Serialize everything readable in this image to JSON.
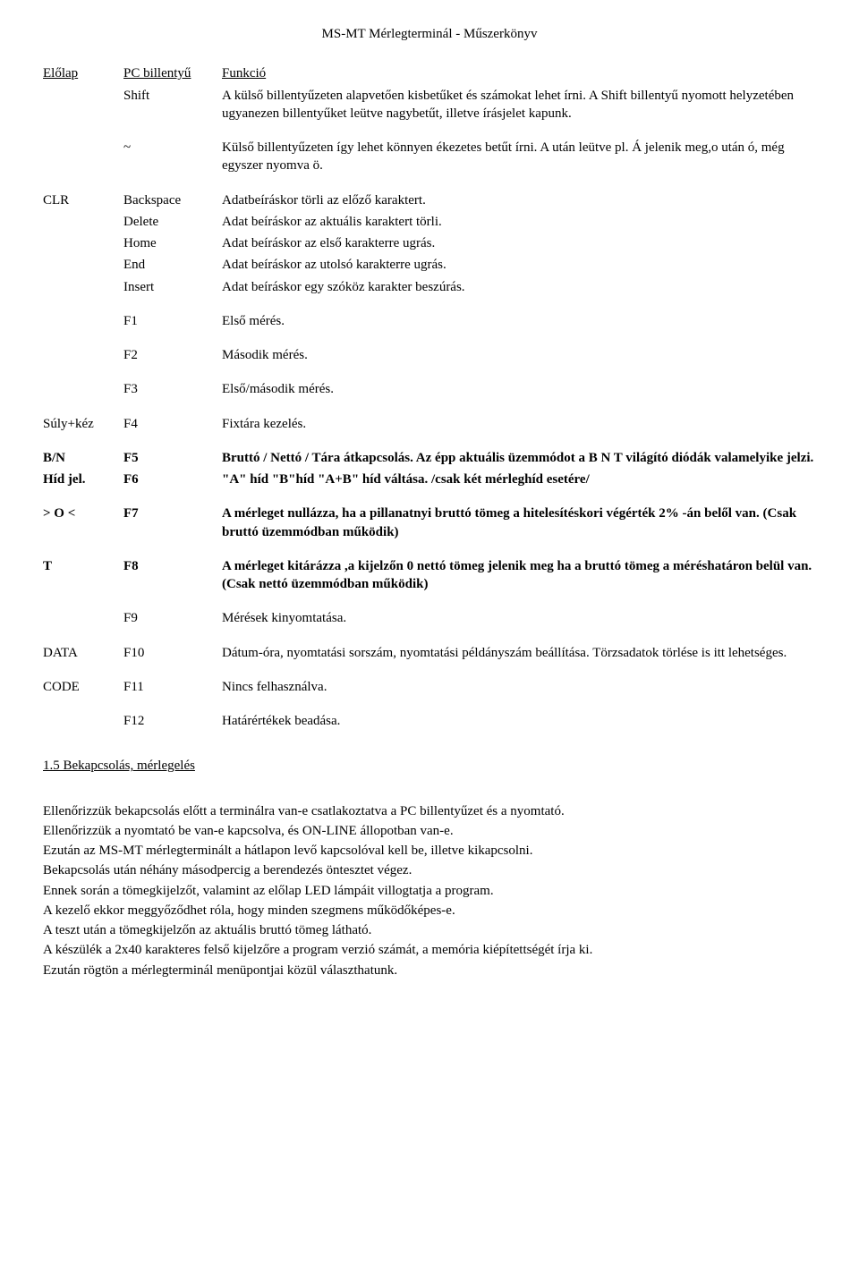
{
  "header": "MS-MT Mérlegterminál - Műszerkönyv",
  "thead": {
    "c1": "Előlap",
    "c2": "PC billentyű",
    "c3": "Funkció"
  },
  "shift": {
    "c2": "Shift",
    "c3": "A külső billentyűzeten alapvetően kisbetűket és számokat lehet írni. A Shift billentyű nyomott helyzetében ugyanezen billentyűket leütve nagybetűt, illetve írásjelet kapunk."
  },
  "tilde": {
    "c2": "~",
    "c3": "Külső billentyűzeten így lehet könnyen ékezetes betűt írni. A után leütve pl. Á jelenik meg,o után ó, még egyszer nyomva ö."
  },
  "clr": {
    "c1": "CLR",
    "items": [
      {
        "k": "Backspace",
        "v": "Adatbeíráskor törli az előző karaktert."
      },
      {
        "k": "Delete",
        "v": "Adat beíráskor az aktuális karaktert törli."
      },
      {
        "k": "Home",
        "v": "Adat beíráskor az első karakterre ugrás."
      },
      {
        "k": "End",
        "v": "Adat beíráskor az utolsó karakterre ugrás."
      },
      {
        "k": "Insert",
        "v": "Adat beíráskor egy szóköz karakter beszúrás."
      }
    ]
  },
  "f1": {
    "k": "F1",
    "v": "Első mérés."
  },
  "f2": {
    "k": "F2",
    "v": "Második mérés."
  },
  "f3": {
    "k": "F3",
    "v": "Első/második mérés."
  },
  "f4": {
    "c1": "Súly+kéz",
    "k": "F4",
    "v": "Fixtára kezelés."
  },
  "f5": {
    "c1": "B/N",
    "k": "F5",
    "v": "Bruttó / Nettó / Tára átkapcsolás. Az épp aktuális üzemmódot a B N T világító diódák valamelyike jelzi."
  },
  "f6": {
    "c1": "Híd jel.",
    "k": "F6",
    "v": "\"A\" híd  \"B\"híd \"A+B\" híd váltása.  /csak két mérleghíd esetére/"
  },
  "f7": {
    "c1": "> O <",
    "k": "F7",
    "v": "A mérleget nullázza, ha a pillanatnyi bruttó tömeg a hitelesítéskori végérték 2% -án belől van. (Csak bruttó üzemmódban működik)"
  },
  "f8": {
    "c1": "T",
    "k": "F8",
    "v": "A mérleget kitárázza ,a kijelzőn 0 nettó tömeg jelenik meg  ha a bruttó tömeg a méréshatáron belül van. (Csak nettó üzemmódban működik)"
  },
  "f9": {
    "k": "F9",
    "v": "Mérések kinyomtatása."
  },
  "f10": {
    "c1": "DATA",
    "k": "F10",
    "v": "Dátum-óra,  nyomtatási sorszám, nyomtatási példányszám beállítása. Törzsadatok törlése is itt lehetséges."
  },
  "f11": {
    "c1": "CODE",
    "k": "F11",
    "v": "Nincs felhasználva."
  },
  "f12": {
    "k": "F12",
    "v": "Határértékek beadása."
  },
  "section": "1.5 Bekapcsolás, mérlegelés",
  "para": [
    "Ellenőrizzük bekapcsolás előtt a terminálra van-e csatlakoztatva a PC billentyűzet és a nyomtató.",
    "Ellenőrizzük a nyomtató be van-e kapcsolva, és ON-LINE állopotban van-e.",
    "Ezután az MS-MT mérlegterminált a hátlapon levő kapcsolóval kell be, illetve kikapcsolni.",
    "Bekapcsolás után néhány másodpercig a berendezés öntesztet végez.",
    "Ennek során a tömegkijelzőt, valamint az előlap LED lámpáit villogtatja a program.",
    "A kezelő ekkor meggyőződhet róla, hogy minden szegmens működőképes-e.",
    "A teszt után a tömegkijelzőn az aktuális bruttó tömeg látható.",
    "A készülék a 2x40 karakteres felső kijelzőre a program verzió számát, a memória kiépítettségét írja ki.",
    "Ezután rögtön a mérlegterminál menüpontjai közül választhatunk."
  ]
}
